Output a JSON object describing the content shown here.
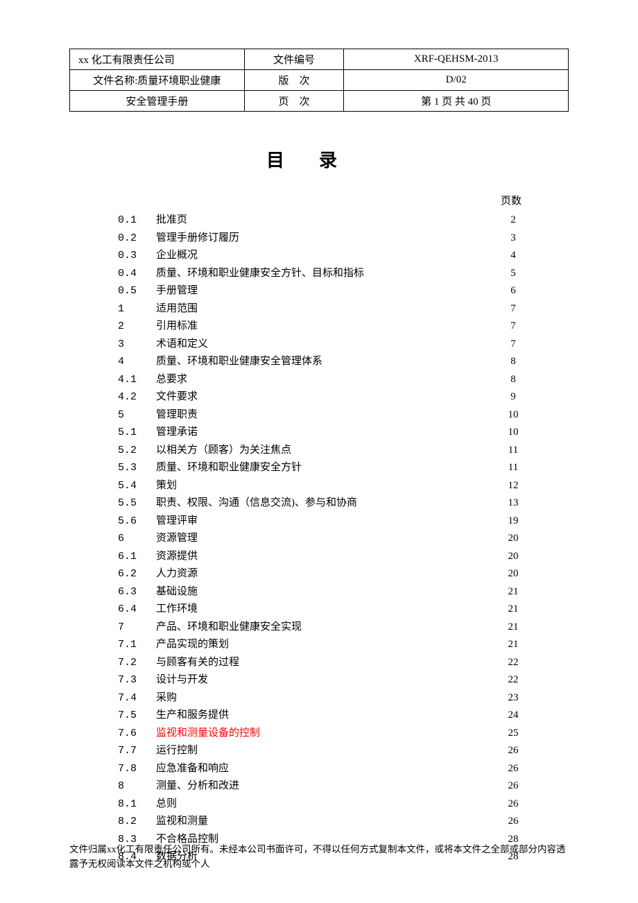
{
  "header": {
    "company": "xx 化工有限责任公司",
    "doc_code_label": "文件编号",
    "doc_code": "XRF-QEHSM-2013",
    "doc_name_label": "文件名称:质量环境职业健康",
    "version_label": "版　次",
    "version": "D/02",
    "doc_name_line2": "安全管理手册",
    "page_label": "页　次",
    "page_info": "第 1 页 共 40 页"
  },
  "title": "目录",
  "page_header": "页数",
  "toc": [
    {
      "num": "0.1",
      "label": "批准页",
      "page": "2",
      "highlight": false
    },
    {
      "num": "0.2",
      "label": "管理手册修订履历",
      "page": "3",
      "highlight": false
    },
    {
      "num": "0.3",
      "label": "企业概况",
      "page": "4",
      "highlight": false
    },
    {
      "num": "0.4",
      "label": "质量、环境和职业健康安全方针、目标和指标",
      "page": "5",
      "highlight": false
    },
    {
      "num": "0.5",
      "label": "手册管理",
      "page": "6",
      "highlight": false
    },
    {
      "num": "1",
      "label": "适用范围",
      "page": "7",
      "highlight": false
    },
    {
      "num": "2",
      "label": "引用标准",
      "page": "7",
      "highlight": false
    },
    {
      "num": "3",
      "label": "术语和定义",
      "page": "7",
      "highlight": false
    },
    {
      "num": "4",
      "label": "质量、环境和职业健康安全管理体系",
      "page": "8",
      "highlight": false
    },
    {
      "num": "4.1",
      "label": "总要求",
      "page": "8",
      "highlight": false
    },
    {
      "num": "4.2",
      "label": "文件要求",
      "page": "9",
      "highlight": false
    },
    {
      "num": "5",
      "label": "管理职责",
      "page": "10",
      "highlight": false
    },
    {
      "num": "5.1",
      "label": "管理承诺",
      "page": "10",
      "highlight": false
    },
    {
      "num": "5.2",
      "label": "以相关方（顾客）为关注焦点",
      "page": "11",
      "highlight": false
    },
    {
      "num": "5.3",
      "label": "质量、环境和职业健康安全方针",
      "page": "11",
      "highlight": false
    },
    {
      "num": "5.4",
      "label": "策划",
      "page": "12",
      "highlight": false
    },
    {
      "num": "5.5",
      "label": "职责、权限、沟通（信息交流)、参与和协商",
      "page": "13",
      "highlight": false
    },
    {
      "num": "5.6",
      "label": "管理评审",
      "page": "19",
      "highlight": false
    },
    {
      "num": "6",
      "label": "资源管理",
      "page": "20",
      "highlight": false
    },
    {
      "num": "6.1",
      "label": "资源提供",
      "page": "20",
      "highlight": false
    },
    {
      "num": "6.2",
      "label": "人力资源",
      "page": "20",
      "highlight": false
    },
    {
      "num": "6.3",
      "label": "基础设施",
      "page": "21",
      "highlight": false
    },
    {
      "num": "6.4",
      "label": "工作环境",
      "page": "21",
      "highlight": false
    },
    {
      "num": "7",
      "label": "产品、环境和职业健康安全实现",
      "page": "21",
      "highlight": false
    },
    {
      "num": "7.1",
      "label": "产品实现的策划",
      "page": "21",
      "highlight": false
    },
    {
      "num": "7.2",
      "label": "与顾客有关的过程",
      "page": "22",
      "highlight": false
    },
    {
      "num": "7.3",
      "label": "设计与开发",
      "page": "22",
      "highlight": false
    },
    {
      "num": "7.4",
      "label": "采购",
      "page": "23",
      "highlight": false
    },
    {
      "num": "7.5",
      "label": "生产和服务提供",
      "page": "24",
      "highlight": false
    },
    {
      "num": "7.6",
      "label": "监视和测量设备的控制",
      "page": "25",
      "highlight": true
    },
    {
      "num": "7.7",
      "label": "运行控制",
      "page": "26",
      "highlight": false
    },
    {
      "num": "7.8",
      "label": "应急准备和响应",
      "page": "26",
      "highlight": false
    },
    {
      "num": "8",
      "label": "测量、分析和改进",
      "page": "26",
      "highlight": false
    },
    {
      "num": "8.1",
      "label": "总则",
      "page": "26",
      "highlight": false
    },
    {
      "num": "8.2",
      "label": "监视和测量",
      "page": "26",
      "highlight": false
    },
    {
      "num": "8.3",
      "label": "不合格品控制",
      "page": "28",
      "highlight": false
    },
    {
      "num": "8.4",
      "label": "数据分析",
      "page": "28",
      "highlight": false
    }
  ],
  "footer": "文件归属xx化工有限责任公司所有。未经本公司书面许可，不得以任何方式复制本文件，或将本文件之全部或部分内容透露予无权阅读本文件之机构或个人"
}
